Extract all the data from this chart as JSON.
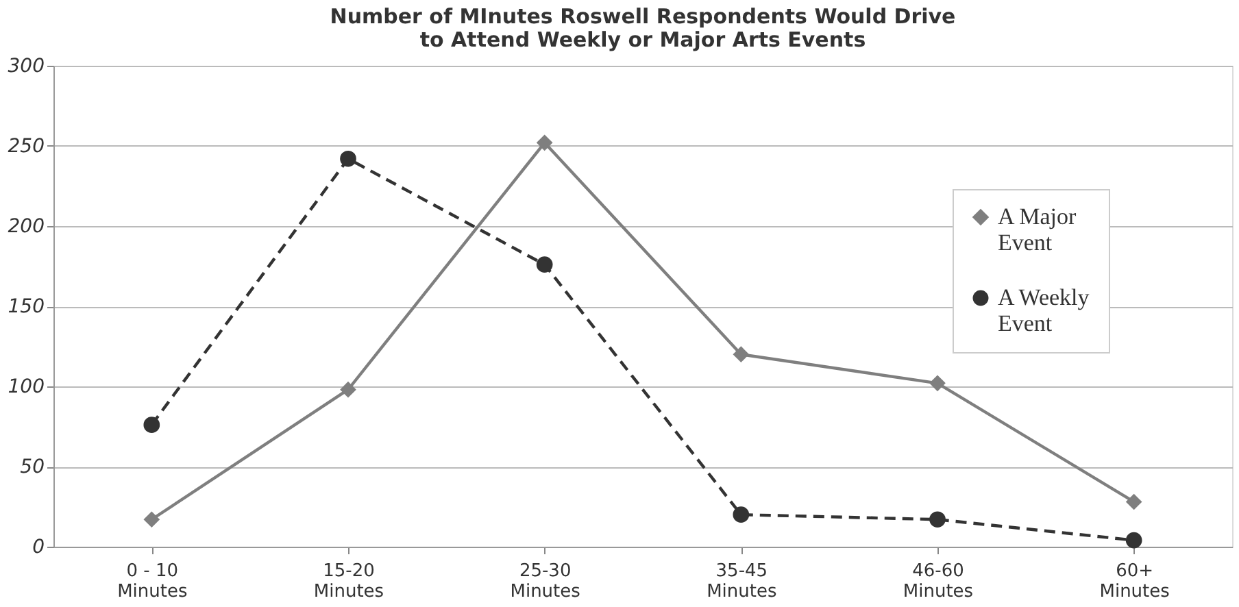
{
  "chart_data": {
    "type": "line",
    "title": [
      "Number of MInutes Roswell Respondents Would Drive",
      "to Attend Weekly or Major Arts Events"
    ],
    "categories": [
      "0 - 10\nMinutes",
      "15-20\nMinutes",
      "25-30\nMinutes",
      "35-45\nMinutes",
      "46-60\nMinutes",
      "60+\nMinutes"
    ],
    "series": [
      {
        "name": "A Major\nEvent",
        "color": "#7f7f7f",
        "marker": "diamond",
        "line_style": "solid",
        "values": [
          17,
          98,
          252,
          120,
          102,
          28
        ]
      },
      {
        "name": "A Weekly\nEvent",
        "color": "#333333",
        "marker": "circle",
        "line_style": "dashed",
        "values": [
          76,
          242,
          176,
          20,
          17,
          4
        ]
      }
    ],
    "ylim": [
      0,
      300
    ],
    "yticks": [
      0,
      50,
      100,
      150,
      200,
      250,
      300
    ],
    "grid": "y",
    "legend": "top right"
  }
}
